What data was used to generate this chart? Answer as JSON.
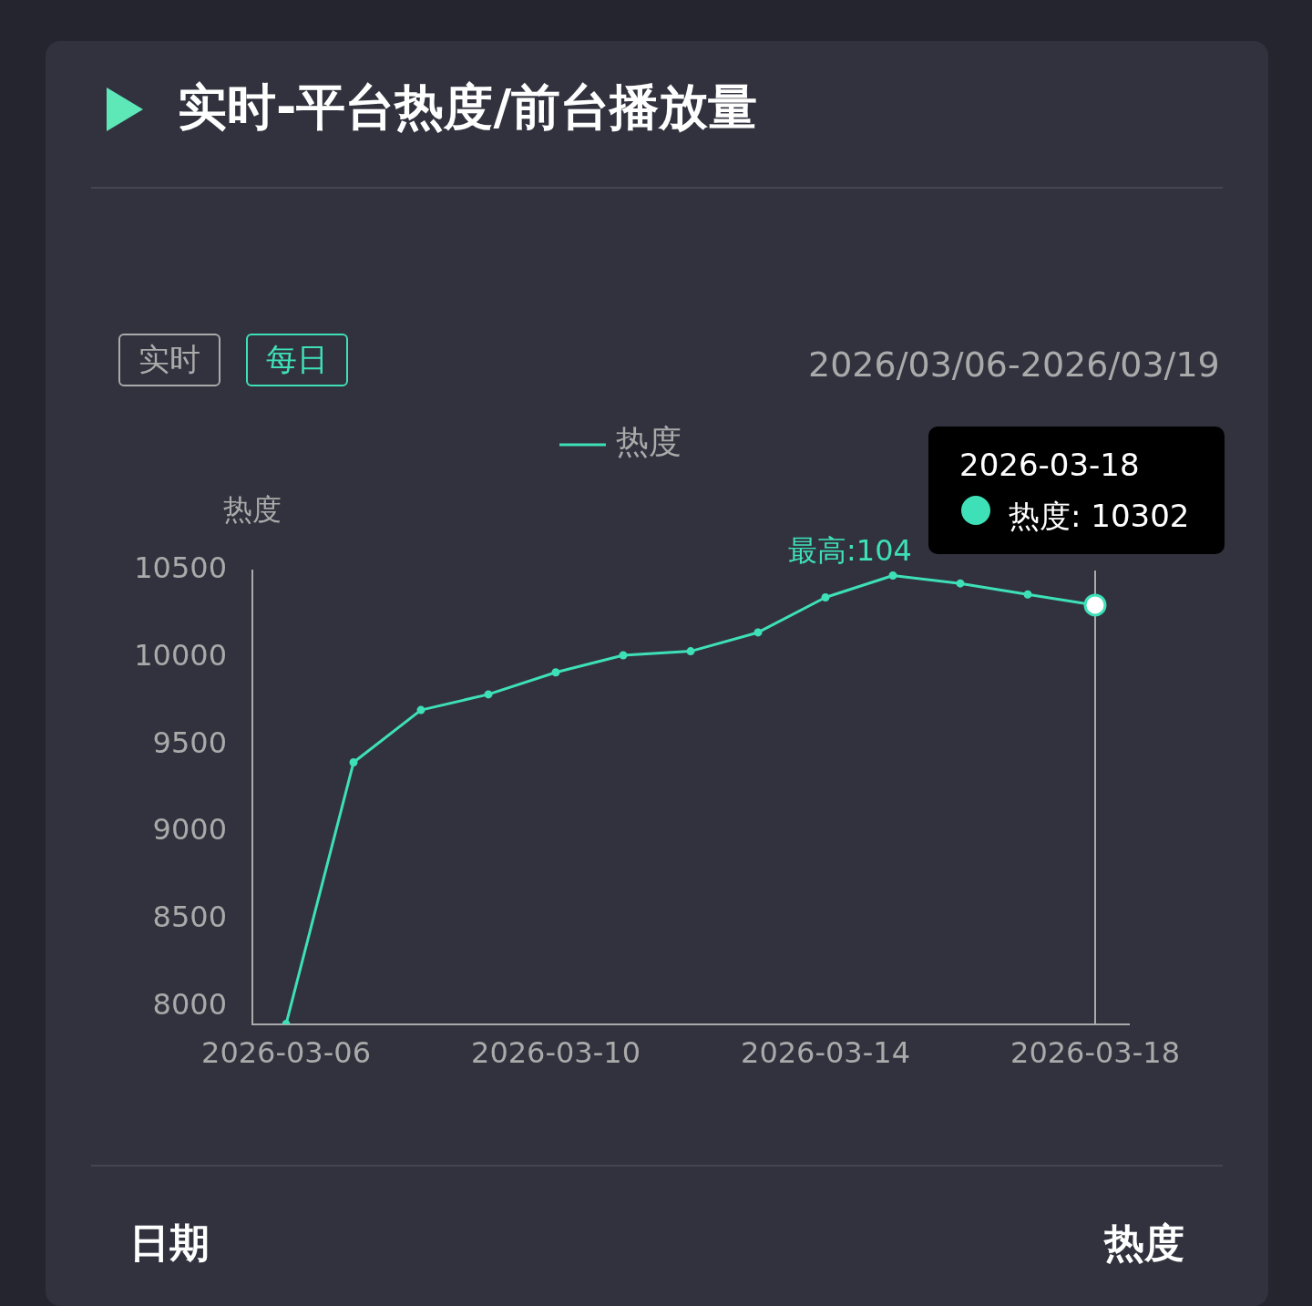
{
  "chart_data": {
    "type": "line",
    "title": "实时-平台热度/前台播放量",
    "ylabel": "热度",
    "categories": [
      "2026-03-06",
      null,
      null,
      null,
      "2026-03-10",
      null,
      null,
      null,
      "2026-03-14",
      null,
      null,
      null,
      "2026-03-18"
    ],
    "series": [
      {
        "name": "热度",
        "color": "#3ee0b8",
        "values": [
          7900,
          9400,
          9700,
          9790,
          9916,
          10014,
          10037,
          10145,
          10346,
          10471,
          10426,
          10363,
          10302
        ]
      }
    ],
    "ylim": [
      7900,
      10500
    ],
    "yticks": [
      8000,
      8500,
      9000,
      9500,
      10000,
      10500
    ],
    "grid": false,
    "legend": "top",
    "marker": "circle",
    "line_style": "solid",
    "ref_lines": [
      {
        "axis": "x",
        "value": "2026-03-18",
        "color": "#aaaaaa"
      }
    ],
    "annotations": [
      "实时",
      "每日",
      "2026/03/06-2026/03/19",
      "日期",
      "热度",
      "最高:104",
      {
        "text": "热度: 10302",
        "x": "2026-03-18",
        "y": 10302
      }
    ]
  }
}
